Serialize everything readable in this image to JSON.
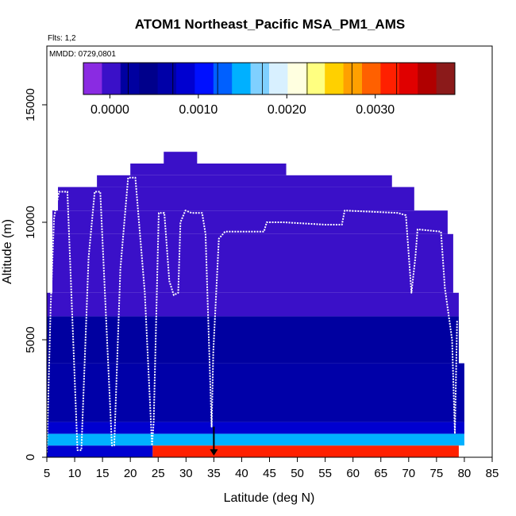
{
  "chart_data": {
    "type": "heatmap",
    "title": "ATOM1 Northeast_Pacific MSA_PM1_AMS",
    "annotations": [
      "Flts: 1,2",
      "MMDD: 0729,0801"
    ],
    "xlabel": "Latitude (deg N)",
    "ylabel": "Altitude (m)",
    "xlim": [
      5,
      85
    ],
    "ylim": [
      0,
      17500
    ],
    "x_ticks": [
      5,
      10,
      15,
      20,
      25,
      30,
      35,
      40,
      45,
      50,
      55,
      60,
      65,
      70,
      75,
      80,
      85
    ],
    "y_ticks": [
      0,
      5000,
      10000,
      15000
    ],
    "y_tick_labels": [
      "0",
      "5000",
      "10000",
      "15000"
    ],
    "colorbar": {
      "range": [
        -0.0003,
        0.0039
      ],
      "ticks": [
        0.0,
        0.001,
        0.002,
        0.003
      ],
      "tick_labels": [
        "0.0000",
        "0.0010",
        "0.0020",
        "0.0030"
      ],
      "colors": [
        "#8a2be2",
        "#3a10c8",
        "#0000a0",
        "#00008b",
        "#0000a8",
        "#0000d0",
        "#0010ff",
        "#0060ff",
        "#00b0ff",
        "#7fd0ff",
        "#d8f0ff",
        "#ffffe0",
        "#ffff80",
        "#ffd000",
        "#ffa000",
        "#ff6000",
        "#ff2000",
        "#e00000",
        "#b00000",
        "#8b1a1a"
      ]
    },
    "altitude_bands": [
      {
        "y0": 0,
        "y1": 500,
        "value": 0.0032,
        "lat_from": 24,
        "lat_to": 79
      },
      {
        "y0": 0,
        "y1": 500,
        "value": 0.0008,
        "lat_from": 5,
        "lat_to": 24
      },
      {
        "y0": 500,
        "y1": 1000,
        "value": 0.0015,
        "lat_from": 5,
        "lat_to": 80
      },
      {
        "y0": 1000,
        "y1": 1500,
        "value": 0.0009,
        "lat_from": 5,
        "lat_to": 80
      },
      {
        "y0": 1500,
        "y1": 2500,
        "value": 0.0007,
        "lat_from": 5,
        "lat_to": 80
      },
      {
        "y0": 2500,
        "y1": 4000,
        "value": 0.0006,
        "lat_from": 5,
        "lat_to": 80
      },
      {
        "y0": 4000,
        "y1": 6000,
        "value": 0.0003,
        "lat_from": 5,
        "lat_to": 79
      },
      {
        "y0": 6000,
        "y1": 7000,
        "value": 0.0001,
        "lat_from": 5,
        "lat_to": 79
      },
      {
        "y0": 7000,
        "y1": 9500,
        "value": 0.0,
        "lat_from": 6,
        "lat_to": 78
      },
      {
        "y0": 9500,
        "y1": 10500,
        "value": 0.0,
        "lat_from": 6,
        "lat_to": 77
      },
      {
        "y0": 10500,
        "y1": 11500,
        "value": 0.0,
        "lat_from": 7,
        "lat_to": 71
      },
      {
        "y0": 11500,
        "y1": 12000,
        "value": 0.0,
        "lat_from": 14,
        "lat_to": 67
      },
      {
        "y0": 12000,
        "y1": 12500,
        "value": 0.0,
        "lat_from": 20,
        "lat_to": 48
      },
      {
        "y0": 12500,
        "y1": 13000,
        "value": 0.0,
        "lat_from": 26,
        "lat_to": 32
      }
    ],
    "flight_track": [
      [
        5.0,
        200
      ],
      [
        5.7,
        6500
      ],
      [
        6.3,
        10200
      ],
      [
        7.2,
        11300
      ],
      [
        8.7,
        11300
      ],
      [
        10.5,
        300
      ],
      [
        11.2,
        300
      ],
      [
        12.5,
        8500
      ],
      [
        13.6,
        11300
      ],
      [
        14.6,
        11300
      ],
      [
        16.7,
        500
      ],
      [
        17.1,
        500
      ],
      [
        18.2,
        8000
      ],
      [
        19.6,
        11900
      ],
      [
        20.9,
        11900
      ],
      [
        22.6,
        7000
      ],
      [
        23.9,
        500
      ],
      [
        24.2,
        1500
      ],
      [
        25.1,
        10400
      ],
      [
        26.1,
        10400
      ],
      [
        27.0,
        7500
      ],
      [
        27.8,
        6900
      ],
      [
        28.6,
        7000
      ],
      [
        29.0,
        10000
      ],
      [
        29.9,
        10500
      ],
      [
        31.0,
        10400
      ],
      [
        32.9,
        10400
      ],
      [
        33.5,
        9500
      ],
      [
        34.6,
        1300
      ],
      [
        34.9,
        4500
      ],
      [
        35.9,
        9300
      ],
      [
        37.0,
        9600
      ],
      [
        44.0,
        9600
      ],
      [
        44.5,
        10000
      ],
      [
        47.5,
        10000
      ],
      [
        55.0,
        9900
      ],
      [
        58.0,
        9900
      ],
      [
        58.5,
        10500
      ],
      [
        68.0,
        10400
      ],
      [
        69.5,
        10300
      ],
      [
        70.5,
        7000
      ],
      [
        71.2,
        8500
      ],
      [
        71.6,
        9700
      ],
      [
        75.8,
        9600
      ],
      [
        76.5,
        7200
      ],
      [
        77.8,
        5000
      ],
      [
        78.3,
        1000
      ],
      [
        78.7,
        5800
      ]
    ],
    "marker": {
      "lat": 35,
      "alt": 600
    }
  }
}
